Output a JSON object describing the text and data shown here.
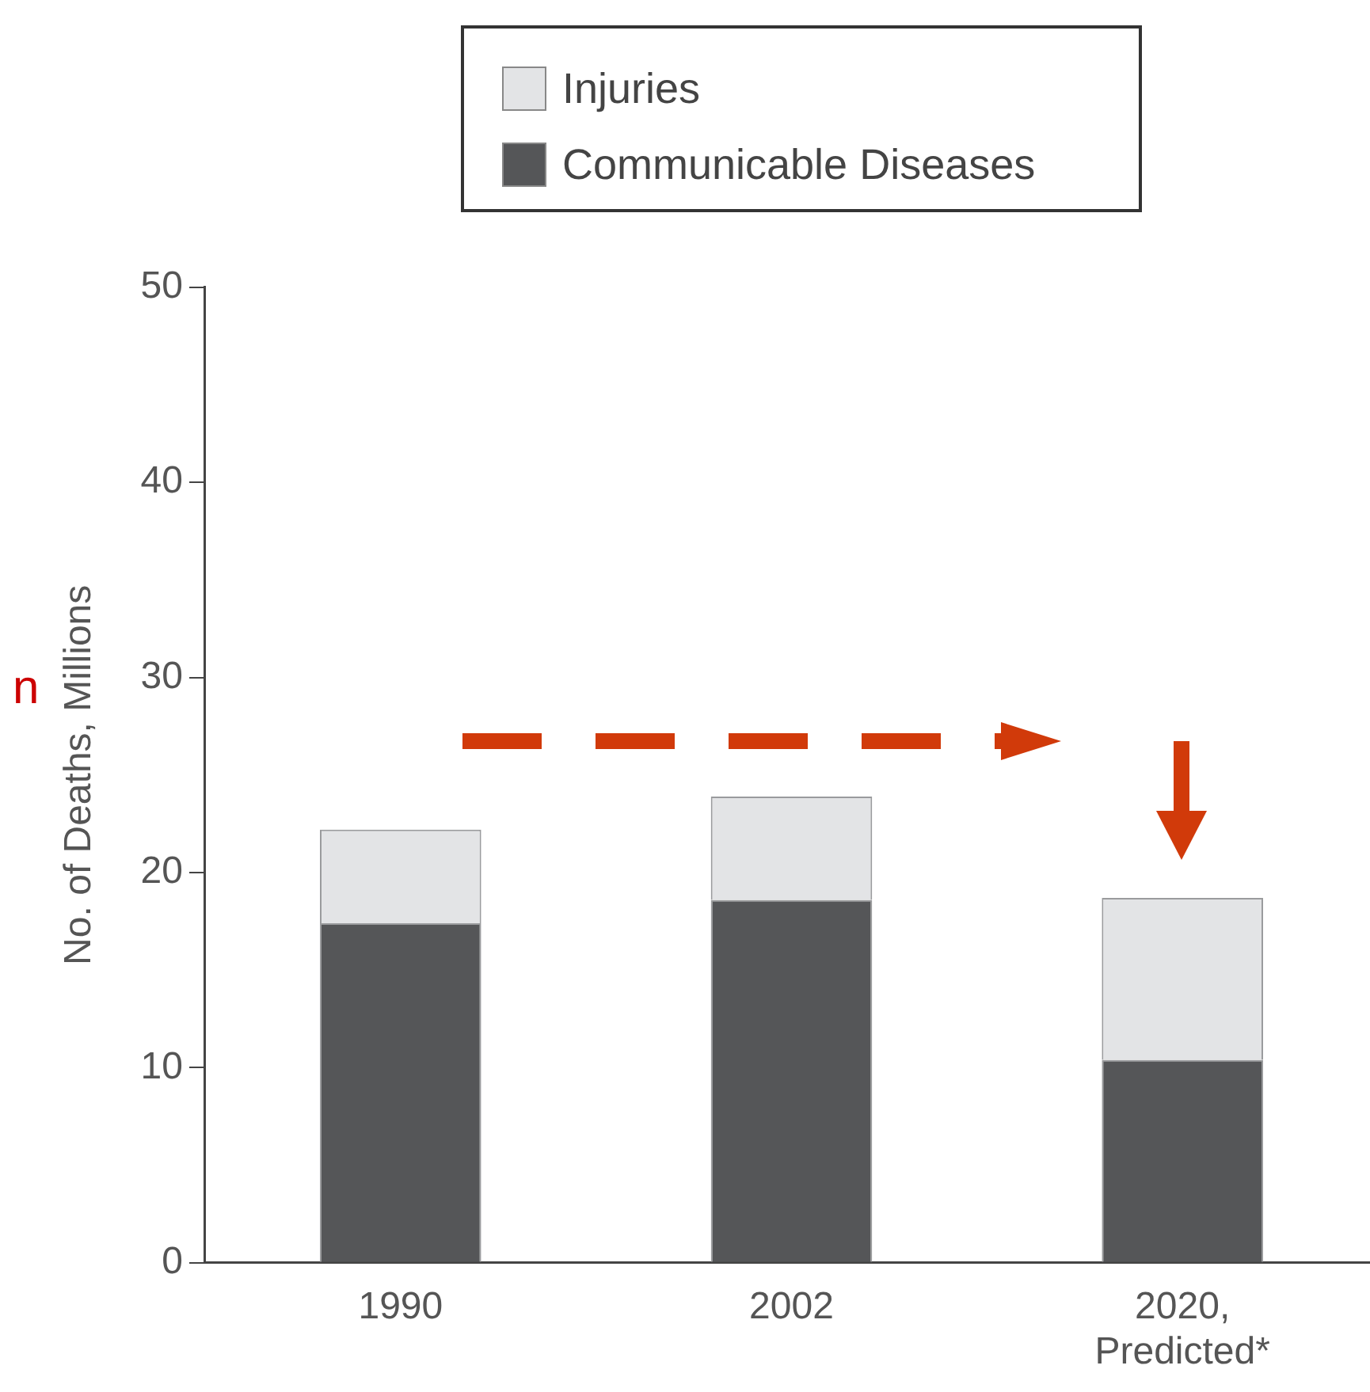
{
  "chart_data": {
    "type": "bar",
    "stacked": true,
    "ylabel": "No. of Deaths, Millions",
    "categories": [
      "1990",
      "2002",
      "2020, Predicted*"
    ],
    "series": [
      {
        "name": "Communicable Diseases",
        "color": "#555658",
        "values": [
          17.4,
          18.6,
          10.4
        ]
      },
      {
        "name": "Injuries",
        "color": "#e3e4e6",
        "values": [
          4.8,
          5.3,
          8.3
        ]
      }
    ],
    "ylim": [
      0,
      50
    ],
    "yticks": [
      0,
      10,
      20,
      30,
      40,
      50
    ],
    "grid": false,
    "legend": "top",
    "annotations": [
      "n"
    ]
  }
}
